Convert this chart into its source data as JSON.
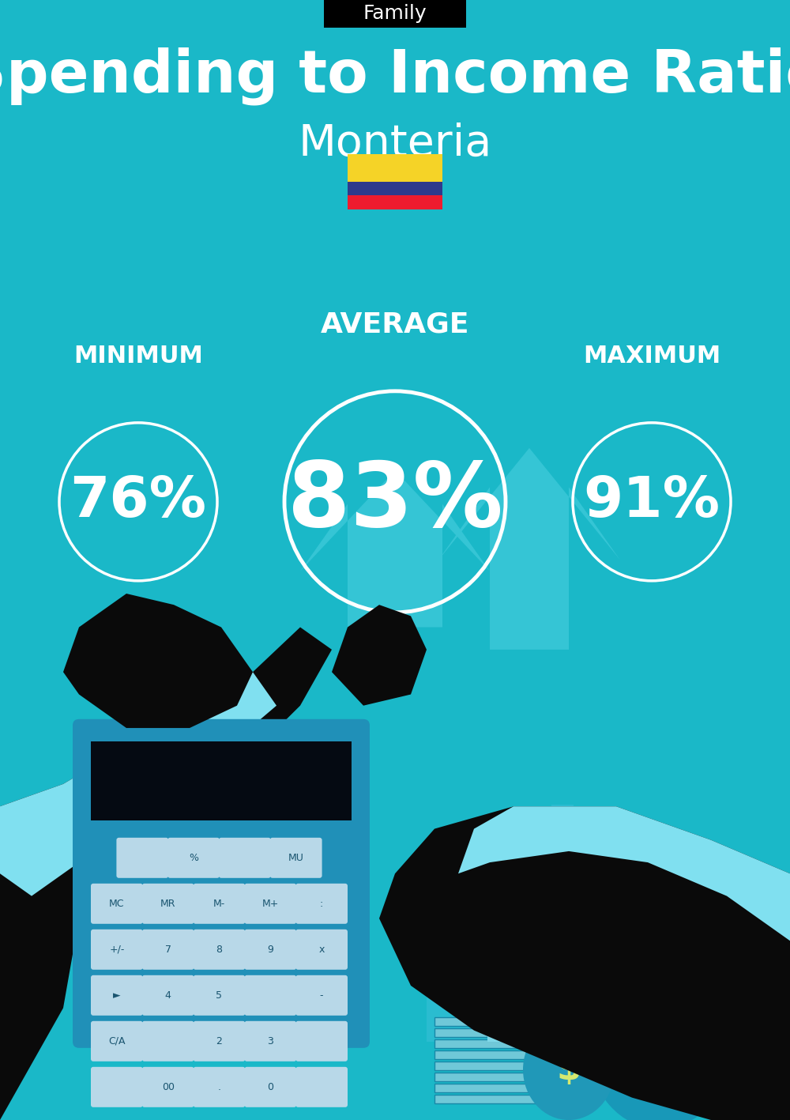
{
  "bg_color": "#1ab8c8",
  "title_tag": "Family",
  "title_tag_bg": "#000000",
  "title_tag_color": "#ffffff",
  "main_title": "Spending to Income Ratio",
  "subtitle": "Monteria",
  "min_label": "MINIMUM",
  "avg_label": "AVERAGE",
  "max_label": "MAXIMUM",
  "min_value": "76%",
  "avg_value": "83%",
  "max_value": "91%",
  "circle_color": "#ffffff",
  "text_color": "#ffffff",
  "flag_yellow": "#f5d327",
  "flag_blue": "#2e3a8c",
  "flag_red": "#ee1b2e",
  "fig_width": 10.0,
  "fig_height": 14.17,
  "dpi": 100
}
